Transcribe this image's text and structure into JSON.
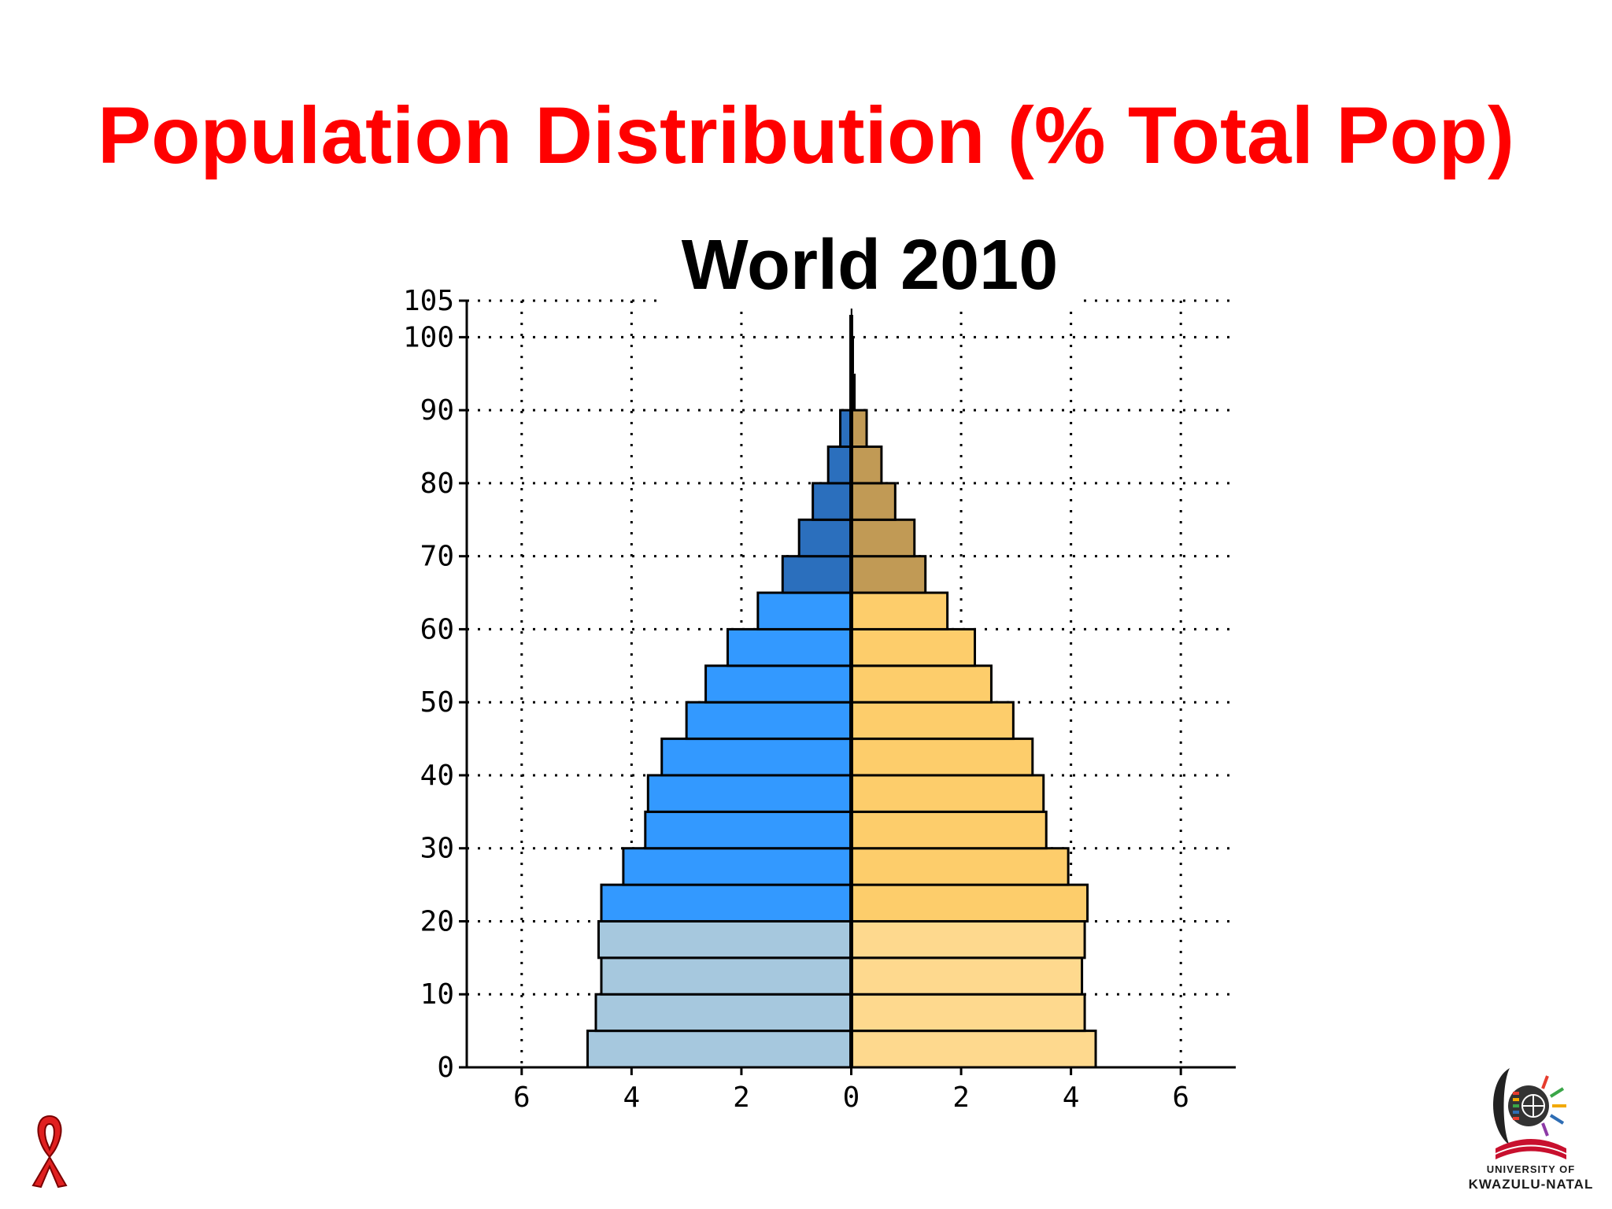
{
  "slide": {
    "title": "Population Distribution (% Total Pop)"
  },
  "chart_data": {
    "type": "bar",
    "orientation": "horizontal-population-pyramid",
    "title": "World 2010",
    "xlabel": "",
    "ylabel": "",
    "xlim": [
      -7,
      7
    ],
    "ylim": [
      0,
      105
    ],
    "x_ticks": [
      {
        "value": -6,
        "label": "6"
      },
      {
        "value": -4,
        "label": "4"
      },
      {
        "value": -2,
        "label": "2"
      },
      {
        "value": 0,
        "label": "0"
      },
      {
        "value": 2,
        "label": "2"
      },
      {
        "value": 4,
        "label": "4"
      },
      {
        "value": 6,
        "label": "6"
      }
    ],
    "y_ticks": [
      {
        "value": 0,
        "label": "0"
      },
      {
        "value": 10,
        "label": "10"
      },
      {
        "value": 20,
        "label": "20"
      },
      {
        "value": 30,
        "label": "30"
      },
      {
        "value": 40,
        "label": "40"
      },
      {
        "value": 50,
        "label": "50"
      },
      {
        "value": 60,
        "label": "60"
      },
      {
        "value": 70,
        "label": "70"
      },
      {
        "value": 80,
        "label": "80"
      },
      {
        "value": 90,
        "label": "90"
      },
      {
        "value": 100,
        "label": "100"
      },
      {
        "value": 105,
        "label": "105"
      }
    ],
    "grid": true,
    "grid_style": "dotted",
    "age_groups": [
      {
        "age_start": 0,
        "age_end": 5,
        "left": 4.8,
        "right": 4.45
      },
      {
        "age_start": 5,
        "age_end": 10,
        "left": 4.65,
        "right": 4.25
      },
      {
        "age_start": 10,
        "age_end": 15,
        "left": 4.55,
        "right": 4.2
      },
      {
        "age_start": 15,
        "age_end": 20,
        "left": 4.6,
        "right": 4.25
      },
      {
        "age_start": 20,
        "age_end": 25,
        "left": 4.55,
        "right": 4.3
      },
      {
        "age_start": 25,
        "age_end": 30,
        "left": 4.15,
        "right": 3.95
      },
      {
        "age_start": 30,
        "age_end": 35,
        "left": 3.75,
        "right": 3.55
      },
      {
        "age_start": 35,
        "age_end": 40,
        "left": 3.7,
        "right": 3.5
      },
      {
        "age_start": 40,
        "age_end": 45,
        "left": 3.45,
        "right": 3.3
      },
      {
        "age_start": 45,
        "age_end": 50,
        "left": 3.0,
        "right": 2.95
      },
      {
        "age_start": 50,
        "age_end": 55,
        "left": 2.65,
        "right": 2.55
      },
      {
        "age_start": 55,
        "age_end": 60,
        "left": 2.25,
        "right": 2.25
      },
      {
        "age_start": 60,
        "age_end": 65,
        "left": 1.7,
        "right": 1.75
      },
      {
        "age_start": 65,
        "age_end": 70,
        "left": 1.25,
        "right": 1.35
      },
      {
        "age_start": 70,
        "age_end": 75,
        "left": 0.95,
        "right": 1.15
      },
      {
        "age_start": 75,
        "age_end": 80,
        "left": 0.7,
        "right": 0.8
      },
      {
        "age_start": 80,
        "age_end": 85,
        "left": 0.42,
        "right": 0.55
      },
      {
        "age_start": 85,
        "age_end": 90,
        "left": 0.2,
        "right": 0.28
      },
      {
        "age_start": 90,
        "age_end": 95,
        "left": 0.02,
        "right": 0.08
      },
      {
        "age_start": 95,
        "age_end": 100,
        "left": 0.01,
        "right": 0.05
      },
      {
        "age_start": 100,
        "age_end": 105,
        "left": 0.01,
        "right": 0.02
      }
    ],
    "colors": {
      "left_young": "#a6c8de",
      "left_working": "#3399ff",
      "left_old": "#2b6fbd",
      "right_young": "#fed98e",
      "right_working": "#fdcd6b",
      "right_old": "#c19a55",
      "edge": "#000000",
      "grid": "#000000"
    },
    "color_bands": [
      {
        "from_age": 0,
        "to_age": 20,
        "band": "young"
      },
      {
        "from_age": 20,
        "to_age": 65,
        "band": "working"
      },
      {
        "from_age": 65,
        "to_age": 105,
        "band": "old"
      }
    ]
  },
  "logos": {
    "ribbon": {
      "icon": "red-ribbon-icon",
      "color": "#e02020"
    },
    "university": {
      "icon": "university-crest-icon",
      "line1": "UNIVERSITY OF",
      "line2": "KWAZULU-NATAL"
    }
  }
}
